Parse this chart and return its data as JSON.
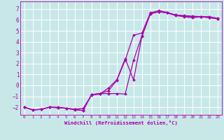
{
  "xlabel": "Windchill (Refroidissement éolien,°C)",
  "xlim": [
    -0.5,
    23.5
  ],
  "ylim": [
    -2.7,
    7.7
  ],
  "yticks": [
    -2,
    -1,
    0,
    1,
    2,
    3,
    4,
    5,
    6,
    7
  ],
  "xticks": [
    0,
    1,
    2,
    3,
    4,
    5,
    6,
    7,
    8,
    9,
    10,
    11,
    12,
    13,
    14,
    15,
    16,
    17,
    18,
    19,
    20,
    21,
    22,
    23
  ],
  "background_color": "#c8e8e8",
  "grid_color": "#b0d8d8",
  "line_color": "#aa00aa",
  "line1_x": [
    0,
    1,
    2,
    3,
    4,
    5,
    6,
    7,
    8,
    9,
    10,
    11,
    12,
    13,
    14,
    15,
    16,
    17,
    18,
    19,
    20,
    21,
    22,
    23
  ],
  "line1_y": [
    -2.0,
    -2.25,
    -2.2,
    -2.0,
    -2.0,
    -2.1,
    -2.25,
    -2.3,
    -0.85,
    -0.75,
    -0.5,
    0.45,
    2.3,
    4.6,
    4.8,
    6.65,
    6.85,
    6.7,
    6.45,
    6.4,
    6.35,
    6.3,
    6.3,
    6.15
  ],
  "line2_x": [
    0,
    1,
    2,
    3,
    4,
    5,
    6,
    7,
    8,
    9,
    10,
    11,
    12,
    13,
    14,
    15,
    16,
    17,
    18,
    19,
    20,
    21,
    22,
    23
  ],
  "line2_y": [
    -2.0,
    -2.25,
    -2.2,
    -2.0,
    -2.05,
    -2.1,
    -2.2,
    -2.1,
    -0.9,
    -0.8,
    -0.25,
    0.5,
    2.45,
    0.5,
    4.5,
    6.55,
    6.75,
    6.65,
    6.45,
    6.35,
    6.3,
    6.3,
    6.25,
    6.1
  ],
  "line3_x": [
    0,
    1,
    2,
    3,
    4,
    5,
    6,
    7,
    8,
    9,
    10,
    11,
    12,
    13,
    14,
    15,
    16,
    17,
    18,
    19,
    20,
    21,
    22,
    23
  ],
  "line3_y": [
    -2.0,
    -2.25,
    -2.2,
    -2.0,
    -2.05,
    -2.1,
    -2.2,
    -2.3,
    -0.85,
    -0.75,
    -0.75,
    -0.75,
    -0.8,
    2.3,
    4.55,
    6.6,
    6.75,
    6.65,
    6.4,
    6.3,
    6.2,
    6.3,
    6.2,
    6.1
  ]
}
